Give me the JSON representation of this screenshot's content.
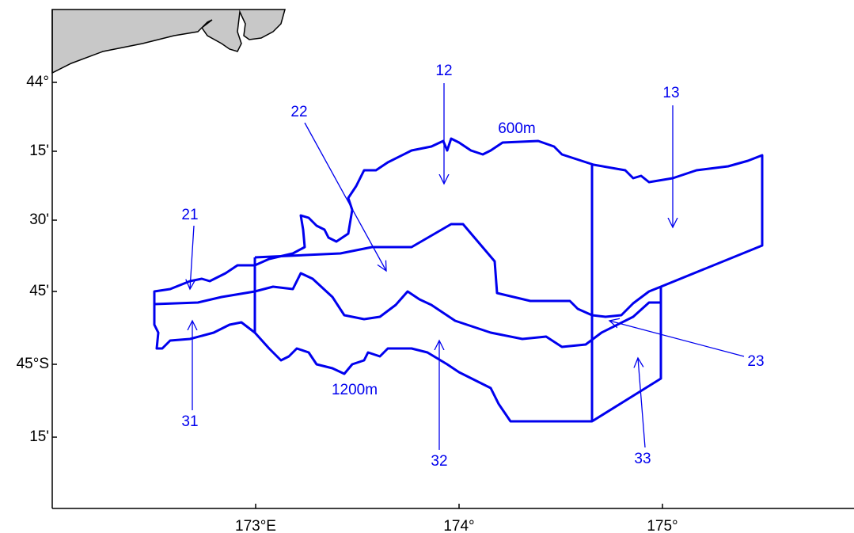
{
  "map": {
    "x_axis_labels": [
      "173°E",
      "174°",
      "175°"
    ],
    "y_axis_labels": [
      "44°",
      "15'",
      "30'",
      "45'",
      "45°S",
      "15'"
    ],
    "strata": [
      "12",
      "13",
      "21",
      "22",
      "23",
      "31",
      "32",
      "33"
    ],
    "isobaths": [
      "600m",
      "1200m"
    ]
  }
}
